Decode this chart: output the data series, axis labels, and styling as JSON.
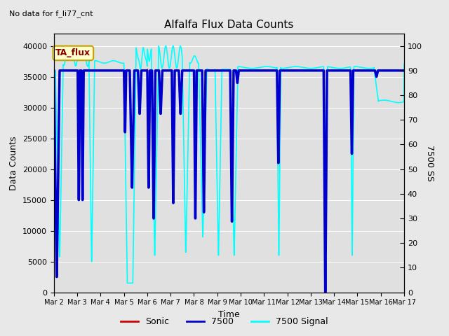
{
  "title": "Alfalfa Flux Data Counts",
  "subtitle": "No data for f_li77_cnt",
  "xlabel": "Time",
  "ylabel_left": "Data Counts",
  "ylabel_right": "7500 SS",
  "legend_label_box": "TA_flux",
  "ylim_left": [
    0,
    42000
  ],
  "ylim_right": [
    0,
    105
  ],
  "bg_color": "#e8e8e8",
  "plot_bg_color": "#e0e0e0",
  "grid_color": "#ffffff",
  "xtick_labels": [
    "Mar 2",
    "Mar 3",
    "Mar 4",
    "Mar 5",
    "Mar 6",
    "Mar 7",
    "Mar 8",
    "Mar 9",
    "Mar 10",
    "Mar 11",
    "Mar 12",
    "Mar 13",
    "Mar 14",
    "Mar 15",
    "Mar 16",
    "Mar 17"
  ],
  "sonic_color": "#cc0000",
  "c7500_color": "#0000cc",
  "signal_color": "#00ffff",
  "sonic_lw": 1.2,
  "c7500_lw": 2.5,
  "signal_lw": 1.2,
  "sonic_label": "Sonic",
  "c7500_label": "7500",
  "signal_label": "7500 Signal",
  "figsize": [
    6.4,
    4.8
  ],
  "dpi": 100
}
